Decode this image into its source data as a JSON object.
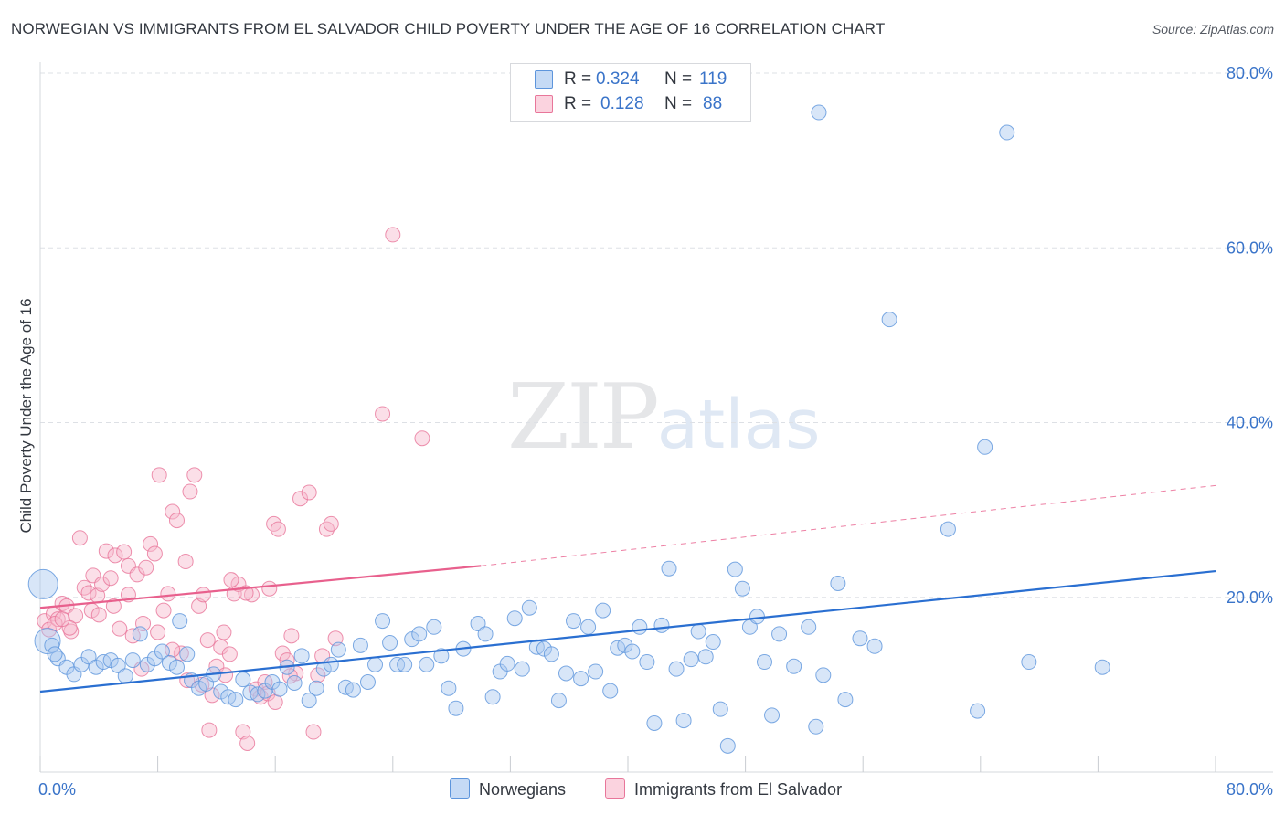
{
  "title": "NORWEGIAN VS IMMIGRANTS FROM EL SALVADOR CHILD POVERTY UNDER THE AGE OF 16 CORRELATION CHART",
  "source": "Source: ZipAtlas.com",
  "watermark": {
    "zip": "ZIP",
    "atlas": "atlas"
  },
  "legend": {
    "r_label": "R =",
    "n_label": "N =",
    "series": [
      {
        "r": "0.324",
        "n": "119",
        "color": "#a9c8f0"
      },
      {
        "r": "0.128",
        "n": "88",
        "color": "#f6b9cb"
      }
    ]
  },
  "bottom_legend": [
    "Norwegians",
    "Immigrants from El Salvador"
  ],
  "colors": {
    "blue_fill": "#a9c8f0",
    "blue_stroke": "#5d95dc",
    "blue_line": "#2a6fd1",
    "pink_fill": "#f6b9cb",
    "pink_stroke": "#e8769a",
    "pink_line": "#e8608d",
    "grid": "#dde0e5",
    "axis_text": "#3a74c9"
  },
  "chart_data": {
    "type": "scatter",
    "title": "NORWEGIAN VS IMMIGRANTS FROM EL SALVADOR CHILD POVERTY UNDER THE AGE OF 16 CORRELATION CHART",
    "xlabel": "",
    "ylabel": "Child Poverty Under the Age of 16",
    "xlim": [
      0,
      80
    ],
    "ylim": [
      0,
      80
    ],
    "x_tick_labels": [
      "0.0%",
      "80.0%"
    ],
    "y_ticks": [
      20,
      40,
      60,
      80
    ],
    "y_tick_labels": [
      "20.0%",
      "40.0%",
      "60.0%",
      "80.0%"
    ],
    "series": [
      {
        "name": "Norwegians",
        "r": 0.324,
        "n": 119,
        "trend": {
          "x0": 0,
          "y0": 9.2,
          "x1": 80,
          "y1": 23.0
        },
        "points": [
          [
            0.5,
            15.0
          ],
          [
            0.2,
            21.5
          ],
          [
            1.2,
            13.0
          ],
          [
            1.8,
            12.0
          ],
          [
            2.3,
            11.2
          ],
          [
            2.8,
            12.3
          ],
          [
            3.3,
            13.2
          ],
          [
            3.8,
            12.0
          ],
          [
            4.3,
            12.6
          ],
          [
            4.8,
            12.8
          ],
          [
            5.3,
            12.2
          ],
          [
            5.8,
            11.0
          ],
          [
            6.3,
            12.8
          ],
          [
            6.8,
            15.8
          ],
          [
            7.3,
            12.3
          ],
          [
            7.8,
            13.0
          ],
          [
            8.3,
            13.8
          ],
          [
            8.8,
            12.5
          ],
          [
            9.3,
            12.0
          ],
          [
            9.5,
            17.3
          ],
          [
            10.0,
            13.5
          ],
          [
            10.3,
            10.5
          ],
          [
            10.8,
            9.6
          ],
          [
            11.3,
            10.1
          ],
          [
            11.8,
            11.2
          ],
          [
            12.3,
            9.2
          ],
          [
            12.8,
            8.6
          ],
          [
            13.3,
            8.3
          ],
          [
            13.8,
            10.6
          ],
          [
            14.3,
            9.1
          ],
          [
            14.8,
            8.9
          ],
          [
            15.3,
            9.3
          ],
          [
            15.8,
            10.3
          ],
          [
            16.3,
            9.5
          ],
          [
            16.8,
            12.0
          ],
          [
            17.3,
            10.2
          ],
          [
            17.8,
            13.3
          ],
          [
            18.3,
            8.2
          ],
          [
            18.8,
            9.6
          ],
          [
            19.3,
            11.8
          ],
          [
            19.8,
            12.3
          ],
          [
            20.3,
            14.0
          ],
          [
            20.8,
            9.7
          ],
          [
            21.3,
            9.4
          ],
          [
            21.8,
            14.5
          ],
          [
            22.3,
            10.3
          ],
          [
            22.8,
            12.3
          ],
          [
            23.3,
            17.3
          ],
          [
            23.8,
            14.8
          ],
          [
            24.3,
            12.3
          ],
          [
            24.8,
            12.3
          ],
          [
            25.3,
            15.2
          ],
          [
            25.8,
            15.8
          ],
          [
            26.3,
            12.3
          ],
          [
            26.8,
            16.6
          ],
          [
            27.3,
            13.3
          ],
          [
            27.8,
            9.6
          ],
          [
            28.3,
            7.3
          ],
          [
            28.8,
            14.1
          ],
          [
            29.8,
            17.0
          ],
          [
            30.3,
            15.8
          ],
          [
            30.8,
            8.6
          ],
          [
            31.3,
            11.5
          ],
          [
            31.8,
            12.4
          ],
          [
            32.3,
            17.6
          ],
          [
            32.8,
            11.8
          ],
          [
            33.3,
            18.8
          ],
          [
            33.8,
            14.3
          ],
          [
            34.3,
            14.1
          ],
          [
            34.8,
            13.5
          ],
          [
            35.3,
            8.2
          ],
          [
            35.8,
            11.3
          ],
          [
            36.3,
            17.3
          ],
          [
            36.8,
            10.7
          ],
          [
            37.3,
            16.6
          ],
          [
            37.8,
            11.5
          ],
          [
            38.3,
            18.5
          ],
          [
            38.8,
            9.3
          ],
          [
            39.3,
            14.2
          ],
          [
            39.8,
            14.5
          ],
          [
            40.3,
            13.8
          ],
          [
            40.8,
            16.6
          ],
          [
            41.3,
            12.6
          ],
          [
            41.8,
            5.6
          ],
          [
            42.3,
            16.8
          ],
          [
            42.8,
            23.3
          ],
          [
            43.3,
            11.8
          ],
          [
            43.8,
            5.9
          ],
          [
            44.3,
            12.9
          ],
          [
            44.8,
            16.1
          ],
          [
            45.3,
            13.2
          ],
          [
            45.8,
            14.9
          ],
          [
            46.3,
            7.2
          ],
          [
            46.8,
            3.0
          ],
          [
            47.3,
            23.2
          ],
          [
            47.8,
            21.0
          ],
          [
            48.3,
            16.6
          ],
          [
            48.8,
            17.8
          ],
          [
            49.3,
            12.6
          ],
          [
            49.8,
            6.5
          ],
          [
            50.3,
            15.8
          ],
          [
            51.3,
            12.1
          ],
          [
            52.3,
            16.6
          ],
          [
            52.8,
            5.2
          ],
          [
            53.3,
            11.1
          ],
          [
            54.3,
            21.6
          ],
          [
            54.8,
            8.3
          ],
          [
            55.8,
            15.3
          ],
          [
            56.8,
            14.4
          ],
          [
            53.0,
            75.5
          ],
          [
            65.8,
            73.2
          ],
          [
            57.8,
            51.8
          ],
          [
            64.3,
            37.2
          ],
          [
            61.8,
            27.8
          ],
          [
            63.8,
            7.0
          ],
          [
            67.3,
            12.6
          ],
          [
            72.3,
            12.0
          ],
          [
            0.8,
            14.5
          ],
          [
            1.0,
            13.5
          ]
        ]
      },
      {
        "name": "Immigrants from El Salvador",
        "r": 0.128,
        "n": 88,
        "trend": {
          "x0": 0,
          "y0": 18.8,
          "x1": 30,
          "y1": 23.6
        },
        "trend_dashed": {
          "x0": 30,
          "y0": 23.6,
          "x1": 80,
          "y1": 32.8
        },
        "points": [
          [
            0.3,
            17.3
          ],
          [
            0.6,
            16.3
          ],
          [
            0.9,
            18.1
          ],
          [
            1.2,
            17.5
          ],
          [
            1.5,
            19.3
          ],
          [
            1.8,
            19.0
          ],
          [
            2.1,
            16.1
          ],
          [
            2.4,
            17.9
          ],
          [
            2.7,
            26.8
          ],
          [
            3.0,
            21.1
          ],
          [
            3.3,
            20.5
          ],
          [
            3.6,
            22.5
          ],
          [
            3.9,
            20.2
          ],
          [
            4.2,
            21.5
          ],
          [
            4.5,
            25.3
          ],
          [
            4.8,
            22.2
          ],
          [
            5.1,
            24.8
          ],
          [
            5.4,
            16.4
          ],
          [
            5.7,
            25.2
          ],
          [
            6.0,
            23.6
          ],
          [
            6.3,
            15.6
          ],
          [
            6.6,
            22.6
          ],
          [
            6.9,
            11.8
          ],
          [
            7.2,
            23.4
          ],
          [
            7.5,
            26.1
          ],
          [
            7.8,
            25.0
          ],
          [
            8.1,
            34.0
          ],
          [
            8.4,
            18.5
          ],
          [
            8.7,
            20.4
          ],
          [
            9.0,
            29.8
          ],
          [
            9.3,
            28.8
          ],
          [
            9.6,
            13.6
          ],
          [
            9.9,
            24.1
          ],
          [
            10.2,
            32.1
          ],
          [
            10.5,
            34.0
          ],
          [
            10.8,
            19.0
          ],
          [
            11.1,
            20.3
          ],
          [
            11.4,
            15.1
          ],
          [
            11.7,
            8.8
          ],
          [
            12.0,
            12.1
          ],
          [
            12.3,
            14.3
          ],
          [
            12.6,
            11.1
          ],
          [
            12.9,
            13.5
          ],
          [
            13.2,
            20.4
          ],
          [
            13.5,
            21.5
          ],
          [
            13.8,
            4.6
          ],
          [
            14.1,
            3.3
          ],
          [
            14.4,
            20.3
          ],
          [
            14.7,
            9.5
          ],
          [
            15.0,
            8.6
          ],
          [
            15.3,
            10.3
          ],
          [
            15.6,
            21.0
          ],
          [
            15.9,
            28.4
          ],
          [
            16.2,
            27.8
          ],
          [
            16.5,
            13.6
          ],
          [
            16.8,
            12.8
          ],
          [
            17.1,
            15.6
          ],
          [
            17.4,
            11.3
          ],
          [
            17.7,
            31.3
          ],
          [
            18.3,
            32.0
          ],
          [
            18.6,
            4.6
          ],
          [
            18.9,
            11.1
          ],
          [
            19.2,
            13.3
          ],
          [
            19.5,
            27.8
          ],
          [
            19.8,
            28.4
          ],
          [
            20.1,
            15.3
          ],
          [
            24.0,
            61.5
          ],
          [
            23.3,
            41.0
          ],
          [
            26.0,
            38.2
          ],
          [
            11.5,
            4.8
          ],
          [
            5.0,
            19.0
          ],
          [
            6.0,
            20.3
          ],
          [
            7.0,
            17.0
          ],
          [
            8.0,
            16.0
          ],
          [
            9.0,
            14.0
          ],
          [
            10.0,
            10.5
          ],
          [
            1.0,
            17.0
          ],
          [
            2.0,
            16.5
          ],
          [
            3.5,
            18.5
          ],
          [
            4.0,
            18.0
          ],
          [
            13.0,
            22.0
          ],
          [
            14.0,
            20.5
          ],
          [
            15.5,
            9.0
          ],
          [
            16.0,
            8.0
          ],
          [
            17.0,
            11.0
          ],
          [
            12.5,
            16.0
          ],
          [
            11.0,
            10.0
          ],
          [
            1.5,
            17.5
          ]
        ]
      }
    ]
  }
}
